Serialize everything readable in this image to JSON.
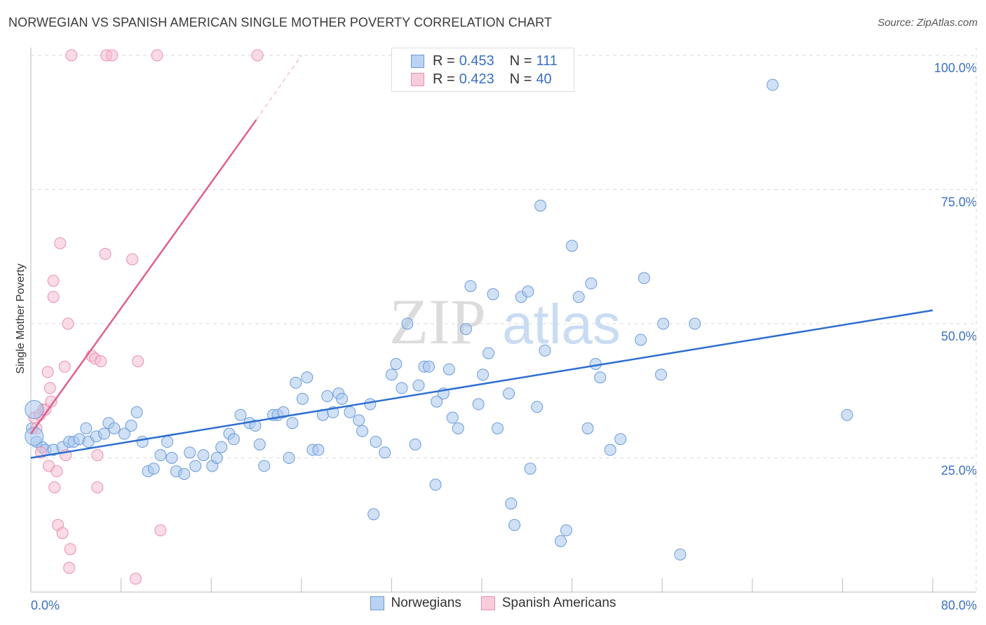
{
  "colors": {
    "blue_fill": "#a9c8ef",
    "blue_stroke": "#6c9ad8",
    "blue_line": "#2e6fd0",
    "pink_fill": "#f6bfd0",
    "pink_stroke": "#e88fae",
    "pink_line": "#e0608f",
    "grid": "#d9d9d9",
    "tick_text": "#3a6fc4"
  },
  "watermark": {
    "zip": "ZIP",
    "atlas": "atlas"
  },
  "legend": {
    "r_label": "R =",
    "n_label": "N =",
    "series": [
      {
        "name": "Norwegians",
        "r": "0.453",
        "n": "111",
        "icon": "blue-square"
      },
      {
        "name": "Spanish Americans",
        "r": "0.423",
        "n": "40",
        "icon": "pink-square"
      }
    ]
  },
  "chart_data": {
    "type": "scatter",
    "title": "NORWEGIAN VS SPANISH AMERICAN SINGLE MOTHER POVERTY CORRELATION CHART",
    "source": "Source: ZipAtlas.com",
    "xlabel": "",
    "ylabel": "Single Mother Poverty",
    "xlim": [
      0,
      80
    ],
    "ylim": [
      0,
      100
    ],
    "x_tick_labels": [
      "0.0%",
      "80.0%"
    ],
    "y_ticks": [
      25,
      50,
      75,
      100
    ],
    "y_tick_labels": [
      "25.0%",
      "50.0%",
      "75.0%",
      "100.0%"
    ],
    "grid": true,
    "series": [
      {
        "name": "Norwegians",
        "color": "blue",
        "trend": {
          "x0": 0,
          "y0": 25.0,
          "x1": 80,
          "y1": 52.5
        },
        "points": [
          [
            0.1,
            30.5
          ],
          [
            0.5,
            28
          ],
          [
            1.0,
            27
          ],
          [
            1.3,
            26.5
          ],
          [
            2.0,
            26.5
          ],
          [
            2.8,
            27
          ],
          [
            3.4,
            28
          ],
          [
            3.8,
            28
          ],
          [
            4.3,
            28.5
          ],
          [
            4.9,
            30.5
          ],
          [
            5.1,
            28
          ],
          [
            5.8,
            29
          ],
          [
            6.5,
            29.5
          ],
          [
            6.9,
            31.5
          ],
          [
            7.4,
            30.5
          ],
          [
            8.3,
            29.5
          ],
          [
            8.9,
            31
          ],
          [
            9.4,
            33.5
          ],
          [
            9.9,
            28
          ],
          [
            10.4,
            22.5
          ],
          [
            10.9,
            23
          ],
          [
            11.5,
            25.5
          ],
          [
            12.1,
            28
          ],
          [
            12.5,
            25
          ],
          [
            12.9,
            22.5
          ],
          [
            13.6,
            22
          ],
          [
            14.1,
            26
          ],
          [
            14.6,
            23.5
          ],
          [
            15.3,
            25.5
          ],
          [
            16.1,
            23.5
          ],
          [
            16.5,
            25
          ],
          [
            16.9,
            27
          ],
          [
            17.6,
            29.5
          ],
          [
            18.0,
            28.5
          ],
          [
            18.6,
            33
          ],
          [
            19.4,
            31.5
          ],
          [
            19.9,
            31
          ],
          [
            20.3,
            27.5
          ],
          [
            20.7,
            23.5
          ],
          [
            21.5,
            33
          ],
          [
            21.9,
            33
          ],
          [
            22.4,
            33.5
          ],
          [
            22.9,
            25
          ],
          [
            23.2,
            31.5
          ],
          [
            23.5,
            39
          ],
          [
            24.1,
            36
          ],
          [
            24.5,
            40
          ],
          [
            25.0,
            26.5
          ],
          [
            25.5,
            26.5
          ],
          [
            25.9,
            33
          ],
          [
            26.3,
            36.5
          ],
          [
            26.8,
            33.5
          ],
          [
            27.3,
            37
          ],
          [
            27.6,
            36
          ],
          [
            28.3,
            33.5
          ],
          [
            29.1,
            32
          ],
          [
            29.4,
            30
          ],
          [
            30.1,
            35
          ],
          [
            30.4,
            14.5
          ],
          [
            30.6,
            28
          ],
          [
            31.4,
            26
          ],
          [
            32.0,
            40.5
          ],
          [
            32.4,
            42.5
          ],
          [
            32.9,
            38
          ],
          [
            33.4,
            50
          ],
          [
            34.1,
            27.5
          ],
          [
            34.4,
            38.5
          ],
          [
            34.9,
            42
          ],
          [
            35.3,
            42
          ],
          [
            35.9,
            20
          ],
          [
            36.0,
            35.5
          ],
          [
            36.6,
            37
          ],
          [
            37.1,
            41.5
          ],
          [
            37.4,
            32.5
          ],
          [
            37.9,
            30.5
          ],
          [
            38.6,
            49
          ],
          [
            39.0,
            57
          ],
          [
            39.7,
            35
          ],
          [
            40.1,
            40.5
          ],
          [
            40.6,
            44.5
          ],
          [
            41.0,
            55.5
          ],
          [
            41.4,
            30.5
          ],
          [
            42.4,
            37
          ],
          [
            42.6,
            16.5
          ],
          [
            42.9,
            12.5
          ],
          [
            43.5,
            55
          ],
          [
            44.1,
            56
          ],
          [
            44.3,
            23
          ],
          [
            44.9,
            34.5
          ],
          [
            45.2,
            72
          ],
          [
            45.6,
            45
          ],
          [
            47.0,
            9.5
          ],
          [
            47.5,
            11.5
          ],
          [
            48.0,
            64.5
          ],
          [
            48.6,
            55
          ],
          [
            49.4,
            30.5
          ],
          [
            49.7,
            57.5
          ],
          [
            50.1,
            42.5
          ],
          [
            50.5,
            40
          ],
          [
            51.4,
            26.5
          ],
          [
            52.3,
            28.5
          ],
          [
            54.1,
            47
          ],
          [
            54.4,
            58.5
          ],
          [
            55.9,
            40.5
          ],
          [
            56.1,
            50
          ],
          [
            57.6,
            7
          ],
          [
            58.9,
            50
          ],
          [
            65.8,
            94.5
          ],
          [
            72.4,
            33
          ]
        ]
      },
      {
        "name": "Spanish Americans",
        "color": "pink",
        "trend": {
          "x0": 0,
          "y0": 29.5,
          "x1": 20,
          "y1": 88,
          "dash_to_x": 24,
          "dash_to_y": 100
        },
        "points": [
          [
            0.3,
            32.5
          ],
          [
            0.5,
            30.5
          ],
          [
            0.8,
            33
          ],
          [
            0.9,
            26
          ],
          [
            1.1,
            34
          ],
          [
            1.3,
            34
          ],
          [
            1.5,
            41
          ],
          [
            1.6,
            23.5
          ],
          [
            1.7,
            38
          ],
          [
            1.8,
            35.5
          ],
          [
            2.0,
            58
          ],
          [
            2.0,
            55
          ],
          [
            2.1,
            19.5
          ],
          [
            2.3,
            22.5
          ],
          [
            2.4,
            12.5
          ],
          [
            2.6,
            65
          ],
          [
            2.8,
            11
          ],
          [
            3.0,
            42
          ],
          [
            3.1,
            25.5
          ],
          [
            3.3,
            50
          ],
          [
            3.4,
            4.5
          ],
          [
            3.5,
            8
          ],
          [
            3.6,
            100
          ],
          [
            5.4,
            44
          ],
          [
            5.7,
            43.5
          ],
          [
            5.9,
            25.5
          ],
          [
            5.9,
            19.5
          ],
          [
            6.2,
            43
          ],
          [
            6.6,
            63
          ],
          [
            6.7,
            100
          ],
          [
            7.2,
            100
          ],
          [
            9.0,
            62
          ],
          [
            9.3,
            2.5
          ],
          [
            9.5,
            43
          ],
          [
            11.2,
            100
          ],
          [
            11.5,
            11.5
          ],
          [
            20.1,
            100
          ]
        ]
      }
    ]
  }
}
